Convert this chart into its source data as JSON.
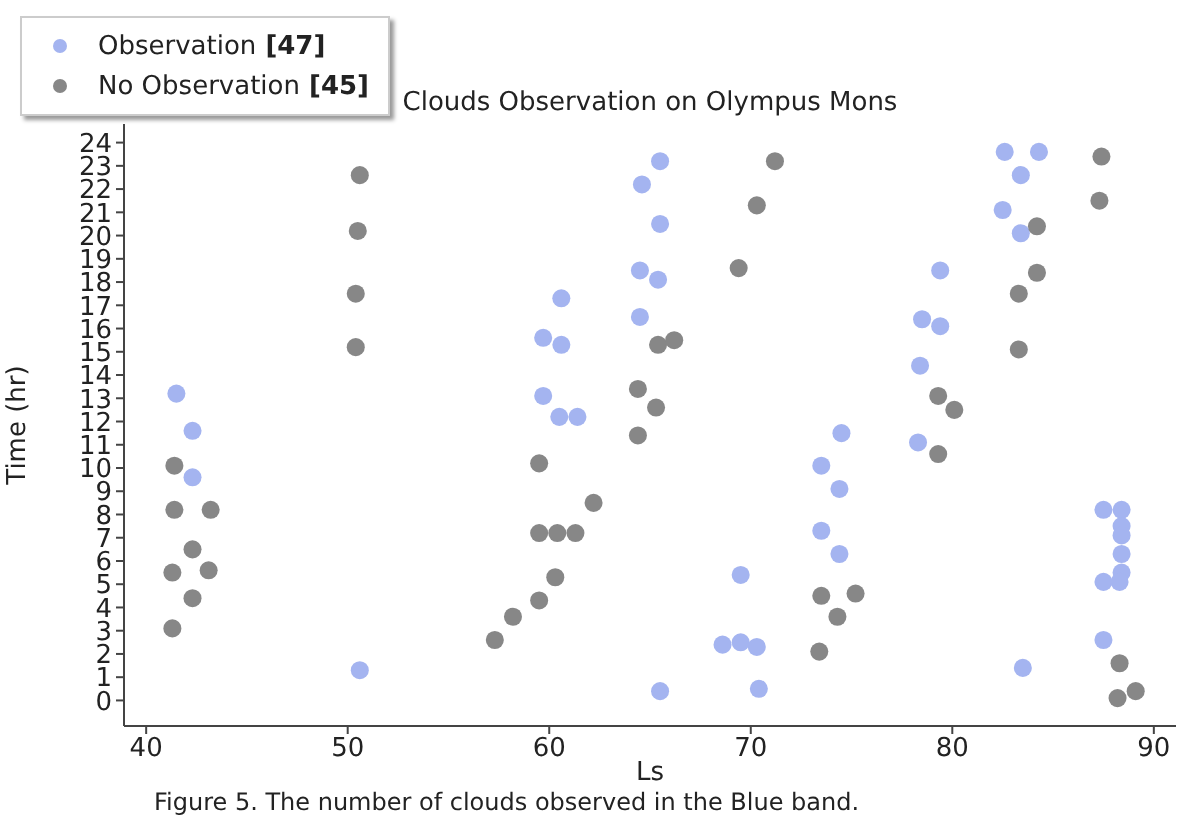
{
  "chart_data": {
    "type": "scatter",
    "title": "Clouds Observation on Olympus Mons",
    "xlabel": "Ls",
    "ylabel": "Time (hr)",
    "annotations": [
      "Figure 5. The number of clouds observed in the Blue band."
    ],
    "xlim": [
      38.9,
      91.1
    ],
    "xticks": [
      40,
      50,
      60,
      70,
      80,
      90
    ],
    "ylim": [
      -1.1,
      24.8
    ],
    "yticks": [
      0,
      1,
      2,
      3,
      4,
      5,
      6,
      7,
      8,
      9,
      10,
      11,
      12,
      13,
      14,
      15,
      16,
      17,
      18,
      19,
      20,
      21,
      22,
      23,
      24
    ],
    "legend": "top left",
    "marker": "circle",
    "grid": false,
    "series": [
      {
        "name": "Observation [47]",
        "color": "#a4b4f0",
        "x": [
          41.5,
          42.3,
          42.3,
          50.6,
          65.5,
          64.6,
          65.5,
          64.5,
          65.4,
          60.6,
          64.5,
          59.7,
          60.6,
          59.7,
          60.5,
          61.4,
          69.5,
          68.6,
          69.5,
          70.3,
          65.5,
          70.4,
          82.6,
          84.3,
          83.4,
          82.5,
          83.4,
          79.4,
          78.5,
          79.4,
          78.4,
          74.5,
          78.3,
          73.5,
          74.4,
          73.5,
          74.4,
          87.5,
          88.4,
          88.4,
          88.4,
          88.4,
          88.4,
          88.3,
          87.5,
          87.5,
          83.5
        ],
        "values": [
          13.2,
          11.6,
          9.6,
          1.3,
          23.2,
          22.2,
          20.5,
          18.5,
          18.1,
          17.3,
          16.5,
          15.6,
          15.3,
          13.1,
          12.2,
          12.2,
          5.4,
          2.4,
          2.5,
          2.3,
          0.4,
          0.5,
          23.6,
          23.6,
          22.6,
          21.1,
          20.1,
          18.5,
          16.4,
          16.1,
          14.4,
          11.5,
          11.1,
          10.1,
          9.1,
          7.3,
          6.3,
          8.2,
          8.2,
          7.5,
          7.1,
          6.3,
          5.5,
          5.1,
          5.1,
          2.6,
          1.4
        ]
      },
      {
        "name": "No Observation [45]",
        "color": "#878787",
        "x": [
          50.6,
          50.5,
          50.4,
          50.4,
          41.4,
          41.4,
          43.2,
          42.3,
          41.3,
          43.1,
          42.3,
          41.3,
          71.2,
          70.3,
          69.4,
          65.4,
          66.2,
          64.4,
          65.3,
          64.4,
          59.5,
          62.2,
          59.5,
          60.4,
          61.3,
          60.3,
          59.5,
          58.2,
          57.3,
          87.4,
          87.3,
          84.2,
          84.2,
          83.3,
          83.3,
          79.3,
          80.1,
          79.3,
          73.5,
          75.2,
          74.3,
          73.4,
          88.3,
          88.2,
          89.1
        ],
        "values": [
          22.6,
          20.2,
          17.5,
          15.2,
          10.1,
          8.2,
          8.2,
          6.5,
          5.5,
          5.6,
          4.4,
          3.1,
          23.2,
          21.3,
          18.6,
          15.3,
          15.5,
          13.4,
          12.6,
          11.4,
          10.2,
          8.5,
          7.2,
          7.2,
          7.2,
          5.3,
          4.3,
          3.6,
          2.6,
          23.4,
          21.5,
          20.4,
          18.4,
          17.5,
          15.1,
          13.1,
          12.5,
          10.6,
          4.5,
          4.6,
          3.6,
          2.1,
          1.6,
          0.1,
          0.4
        ]
      }
    ]
  }
}
